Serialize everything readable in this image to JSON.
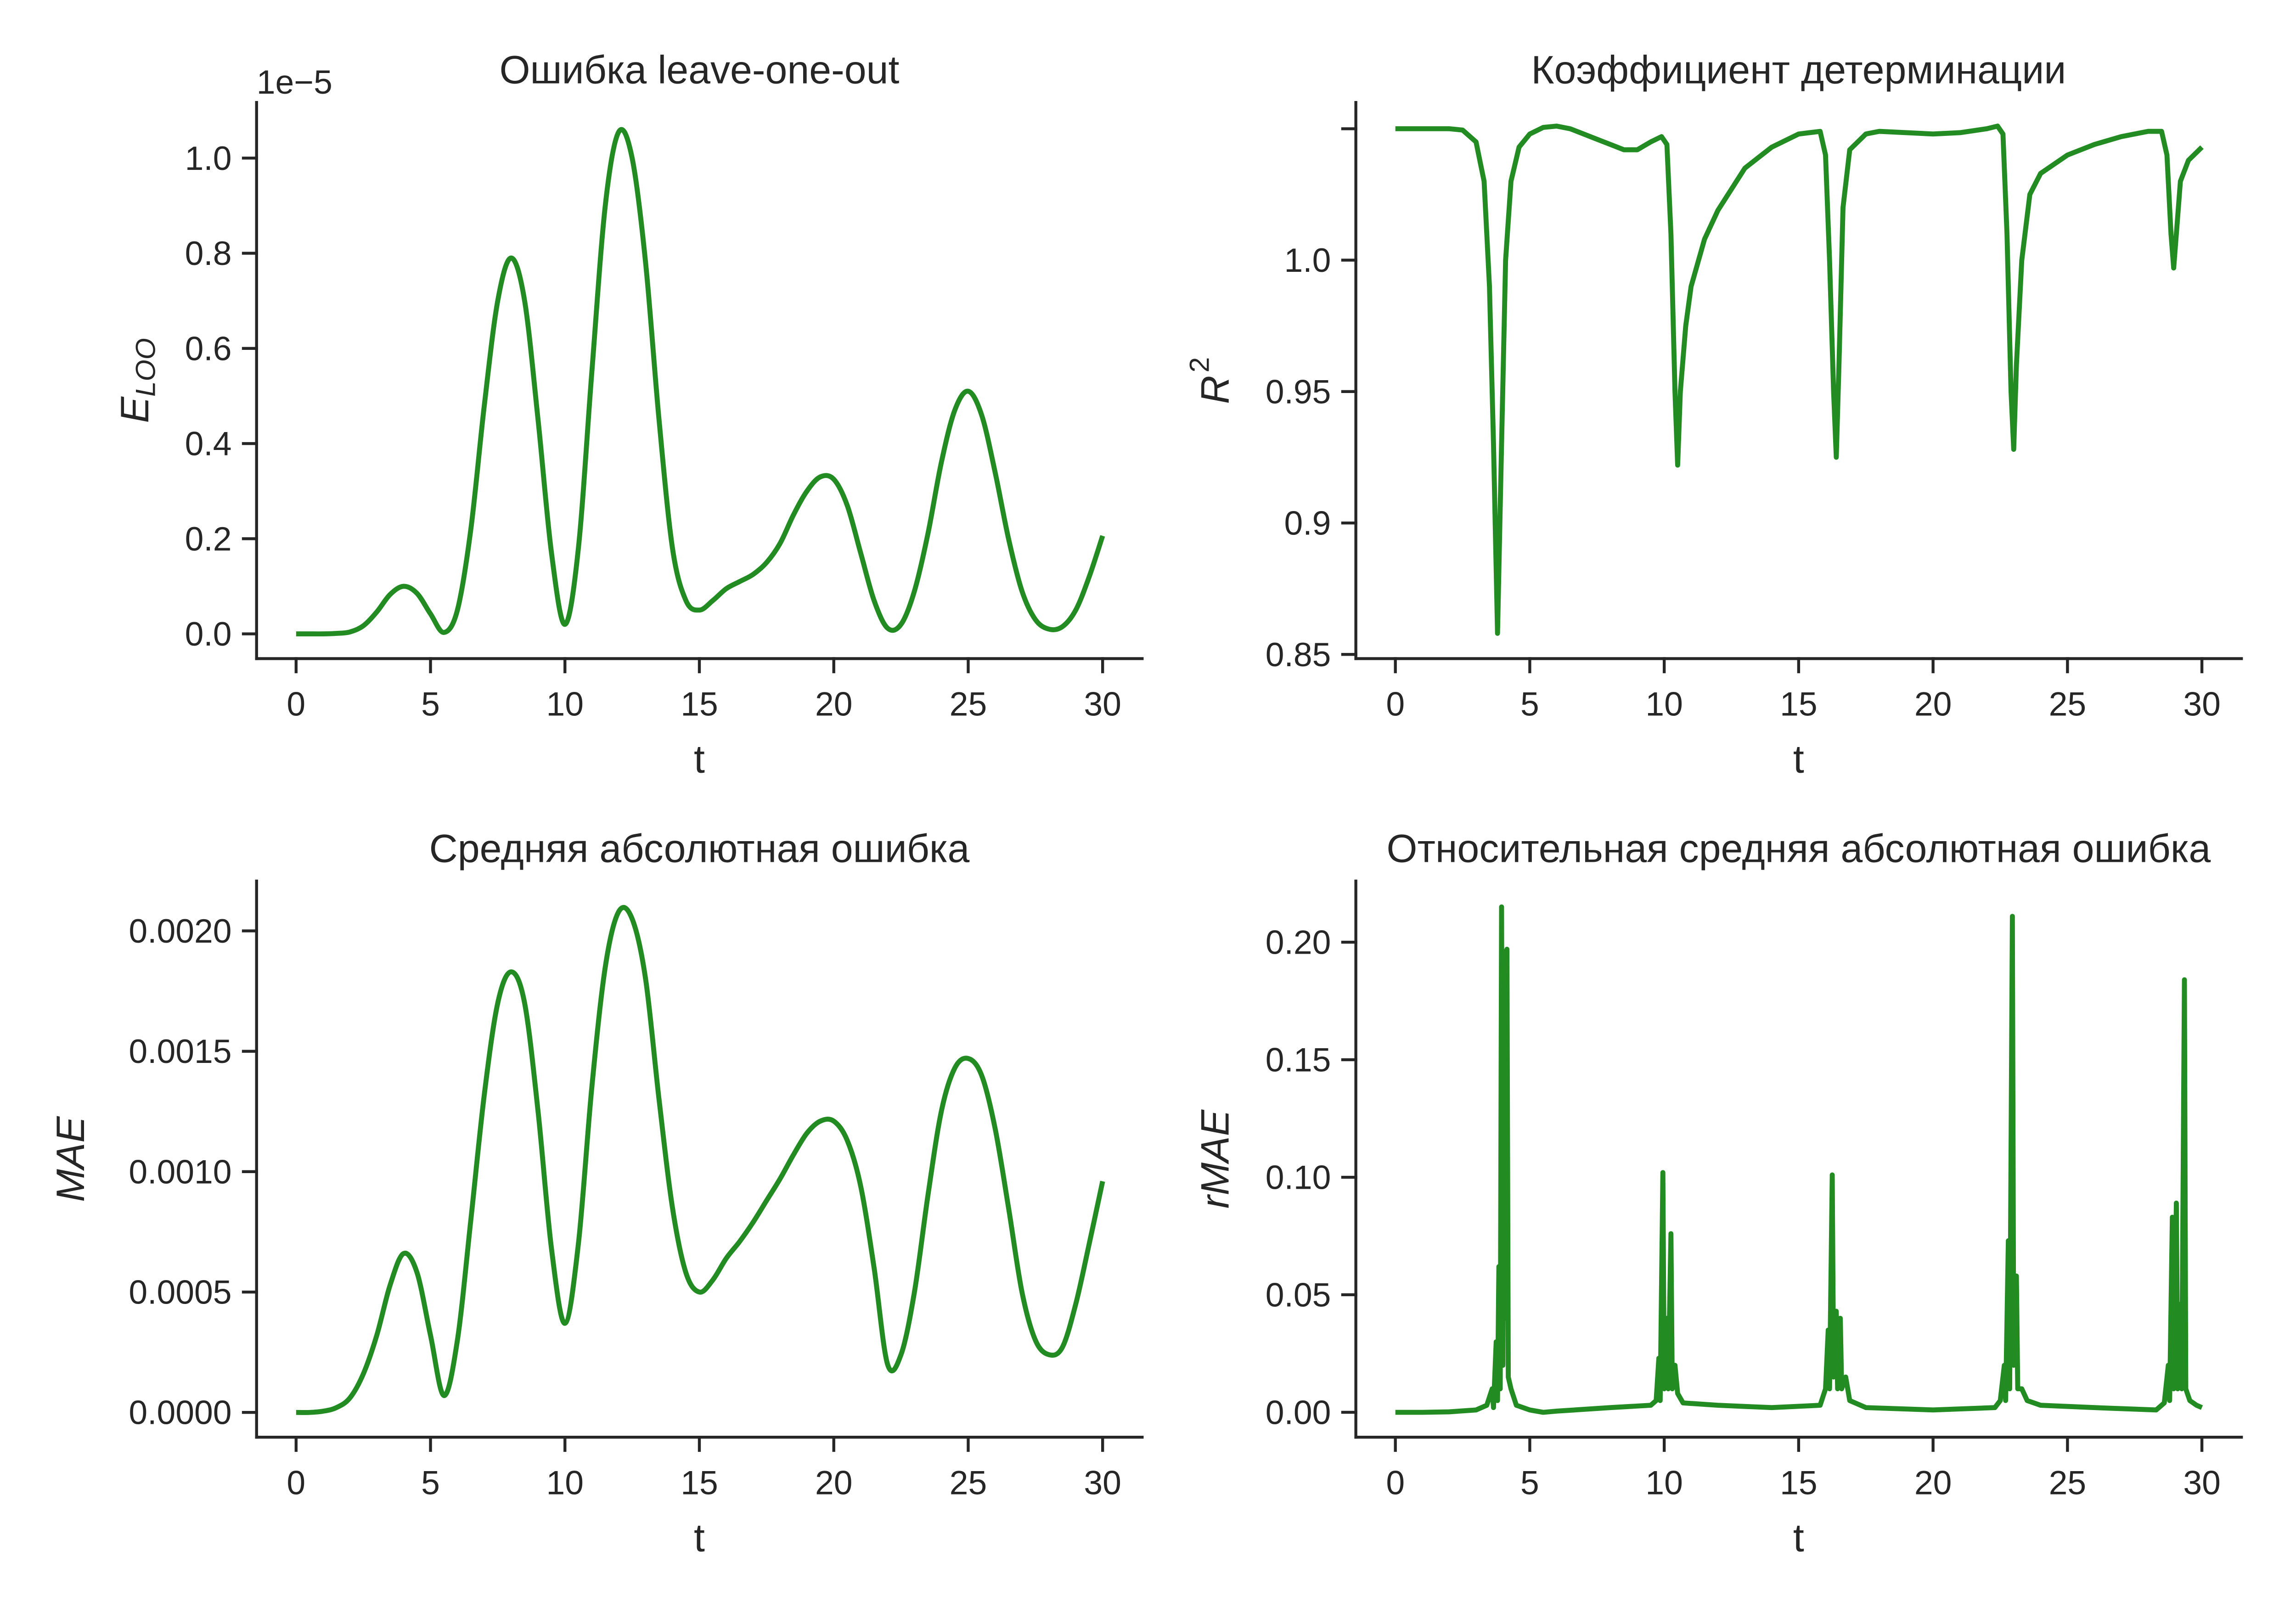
{
  "chart_data": [
    {
      "type": "line",
      "title": "Ошибка leave-one-out",
      "xlabel": "t",
      "ylabel": "E",
      "ylabel_sub": "LOO",
      "y_offset_text": "1e−5",
      "grid": false,
      "line_color": "#228b22",
      "xlim": [
        -1.47,
        31.47
      ],
      "ylim": [
        -0.052,
        1.117
      ],
      "x_ticks": [
        0,
        5,
        10,
        15,
        20,
        25,
        30
      ],
      "x_tick_labels": [
        "0",
        "5",
        "10",
        "15",
        "20",
        "25",
        "30"
      ],
      "y_ticks": [
        0.0,
        0.2,
        0.4,
        0.6,
        0.8,
        1.0
      ],
      "y_tick_labels": [
        "0.0",
        "0.2",
        "0.4",
        "0.6",
        "0.8",
        "1.0"
      ],
      "series": [
        {
          "x": [
            0,
            0.5,
            1,
            1.5,
            2,
            2.5,
            3,
            3.5,
            4,
            4.5,
            5,
            5.5,
            6,
            6.5,
            7,
            7.5,
            8,
            8.5,
            9,
            9.5,
            10,
            10.5,
            11,
            11.5,
            12,
            12.5,
            13,
            13.5,
            14,
            14.5,
            15,
            15.5,
            16,
            16.5,
            17,
            17.5,
            18,
            18.5,
            19,
            19.5,
            20,
            20.5,
            21,
            21.5,
            22,
            22.5,
            23,
            23.5,
            24,
            24.5,
            25,
            25.5,
            26,
            26.5,
            27,
            27.5,
            28,
            28.5,
            29,
            29.5,
            30
          ],
          "y": [
            0,
            0,
            0,
            0.001,
            0.004,
            0.017,
            0.046,
            0.083,
            0.1,
            0.085,
            0.042,
            0.003,
            0.05,
            0.22,
            0.48,
            0.7,
            0.79,
            0.7,
            0.45,
            0.17,
            0.02,
            0.18,
            0.55,
            0.9,
            1.055,
            1.0,
            0.78,
            0.45,
            0.18,
            0.07,
            0.05,
            0.07,
            0.095,
            0.11,
            0.125,
            0.15,
            0.19,
            0.25,
            0.3,
            0.33,
            0.325,
            0.27,
            0.17,
            0.07,
            0.012,
            0.02,
            0.09,
            0.21,
            0.36,
            0.47,
            0.51,
            0.46,
            0.34,
            0.2,
            0.09,
            0.03,
            0.01,
            0.015,
            0.05,
            0.12,
            0.206
          ]
        }
      ]
    },
    {
      "type": "line",
      "title": "Коэффициент детерминации",
      "xlabel": "t",
      "ylabel": "R",
      "ylabel_sup": "2",
      "grid": false,
      "line_color": "#228b22",
      "xlim": [
        -1.47,
        31.47
      ],
      "ylim": [
        0.8484,
        1.06
      ],
      "x_ticks": [
        0,
        5,
        10,
        15,
        20,
        25,
        30
      ],
      "x_tick_labels": [
        "0",
        "5",
        "10",
        "15",
        "20",
        "25",
        "30"
      ],
      "y_ticks": [
        0.85,
        0.9,
        0.95,
        1.0,
        1.05
      ],
      "y_tick_labels": [
        "0.85",
        "0.9",
        "0.95",
        "1.0",
        ""
      ],
      "series": [
        {
          "x": [
            0,
            1,
            2,
            2.5,
            3,
            3.3,
            3.5,
            3.65,
            3.8,
            3.95,
            4.1,
            4.3,
            4.6,
            5,
            5.5,
            6,
            6.5,
            7,
            7.5,
            8,
            8.5,
            9,
            9.5,
            9.9,
            10.1,
            10.25,
            10.4,
            10.5,
            10.6,
            10.8,
            11,
            11.5,
            12,
            13,
            14,
            15,
            15.8,
            16.0,
            16.15,
            16.3,
            16.4,
            16.5,
            16.65,
            16.9,
            17.5,
            18,
            20,
            21,
            22,
            22.4,
            22.6,
            22.75,
            22.9,
            23.0,
            23.1,
            23.3,
            23.6,
            24,
            25,
            26,
            27,
            28,
            28.5,
            28.7,
            28.85,
            28.95,
            29.05,
            29.2,
            29.5,
            30
          ],
          "y": [
            1.05,
            1.05,
            1.05,
            1.0495,
            1.045,
            1.03,
            0.99,
            0.93,
            0.858,
            0.93,
            1.0,
            1.03,
            1.043,
            1.048,
            1.0505,
            1.051,
            1.05,
            1.048,
            1.046,
            1.044,
            1.042,
            1.042,
            1.045,
            1.047,
            1.044,
            1.01,
            0.95,
            0.922,
            0.95,
            0.975,
            0.99,
            1.008,
            1.019,
            1.035,
            1.043,
            1.048,
            1.049,
            1.04,
            1.0,
            0.95,
            0.925,
            0.96,
            1.02,
            1.042,
            1.048,
            1.049,
            1.048,
            1.0485,
            1.05,
            1.051,
            1.048,
            1.01,
            0.95,
            0.928,
            0.96,
            1.0,
            1.025,
            1.033,
            1.04,
            1.044,
            1.047,
            1.049,
            1.049,
            1.04,
            1.01,
            0.997,
            1.01,
            1.03,
            1.038,
            1.043
          ]
        }
      ]
    },
    {
      "type": "line",
      "title": "Средняя абсолютная ошибка",
      "xlabel": "t",
      "ylabel": "MAE",
      "grid": false,
      "line_color": "#228b22",
      "xlim": [
        -1.47,
        31.47
      ],
      "ylim": [
        -0.000103,
        0.002207
      ],
      "x_ticks": [
        0,
        5,
        10,
        15,
        20,
        25,
        30
      ],
      "x_tick_labels": [
        "0",
        "5",
        "10",
        "15",
        "20",
        "25",
        "30"
      ],
      "y_ticks": [
        0.0,
        0.0005,
        0.001,
        0.0015,
        0.002
      ],
      "y_tick_labels": [
        "0.0000",
        "0.0005",
        "0.0010",
        "0.0015",
        "0.0020"
      ],
      "series": [
        {
          "x": [
            0,
            0.5,
            1,
            1.5,
            2,
            2.5,
            3,
            3.5,
            4,
            4.5,
            5,
            5.5,
            6,
            6.5,
            7,
            7.5,
            8,
            8.5,
            9,
            9.5,
            10,
            10.5,
            11,
            11.5,
            12,
            12.5,
            13,
            13.5,
            14,
            14.5,
            15,
            15.5,
            16,
            16.5,
            17,
            17.5,
            18,
            18.5,
            19,
            19.5,
            20,
            20.5,
            21,
            21.5,
            22,
            22.5,
            23,
            23.5,
            24,
            24.5,
            25,
            25.5,
            26,
            26.5,
            27,
            27.5,
            28,
            28.5,
            29,
            29.5,
            30
          ],
          "y": [
            0,
            0,
            5e-06,
            2e-05,
            6e-05,
            0.00016,
            0.00032,
            0.00053,
            0.00066,
            0.00058,
            0.00032,
            7e-05,
            0.0003,
            0.0008,
            0.00132,
            0.0017,
            0.00183,
            0.0017,
            0.00125,
            0.00068,
            0.00037,
            0.0007,
            0.00135,
            0.00185,
            0.00208,
            0.00205,
            0.0018,
            0.0013,
            0.00085,
            0.00058,
            0.0005,
            0.00055,
            0.00064,
            0.00071,
            0.00079,
            0.00088,
            0.00097,
            0.00107,
            0.00116,
            0.00121,
            0.00121,
            0.00113,
            0.00094,
            0.0006,
            0.0002,
            0.00024,
            0.0005,
            0.0009,
            0.00125,
            0.00143,
            0.00147,
            0.0014,
            0.00118,
            0.00085,
            0.0005,
            0.0003,
            0.00024,
            0.00027,
            0.00045,
            0.0007,
            0.00096
          ]
        }
      ]
    },
    {
      "type": "line",
      "title": "Относительная средняя абсолютная ошибка",
      "xlabel": "t",
      "ylabel": "rMAE",
      "grid": false,
      "line_color": "#228b22",
      "xlim": [
        -1.47,
        31.47
      ],
      "ylim": [
        -0.0106,
        0.226
      ],
      "x_ticks": [
        0,
        5,
        10,
        15,
        20,
        25,
        30
      ],
      "x_tick_labels": [
        "0",
        "5",
        "10",
        "15",
        "20",
        "25",
        "30"
      ],
      "y_ticks": [
        0.0,
        0.05,
        0.1,
        0.15,
        0.2
      ],
      "y_tick_labels": [
        "0.00",
        "0.05",
        "0.10",
        "0.15",
        "0.20"
      ],
      "series": [
        {
          "x": [
            0,
            1,
            2,
            3,
            3.4,
            3.6,
            3.65,
            3.75,
            3.8,
            3.85,
            3.9,
            3.95,
            4.0,
            4.05,
            4.1,
            4.15,
            4.2,
            4.3,
            4.5,
            5,
            5.5,
            6,
            8,
            9.5,
            9.7,
            9.8,
            9.85,
            9.95,
            10.0,
            10.1,
            10.15,
            10.25,
            10.3,
            10.4,
            10.5,
            10.7,
            12,
            14,
            15.8,
            16.0,
            16.1,
            16.15,
            16.25,
            16.3,
            16.4,
            16.45,
            16.55,
            16.6,
            16.75,
            16.9,
            17.5,
            20,
            22.3,
            22.5,
            22.65,
            22.7,
            22.8,
            22.85,
            22.95,
            23.0,
            23.1,
            23.15,
            23.3,
            23.5,
            24,
            26,
            28.3,
            28.6,
            28.75,
            28.8,
            28.9,
            28.95,
            29.05,
            29.1,
            29.2,
            29.25,
            29.35,
            29.4,
            29.55,
            29.8,
            30
          ],
          "y": [
            0,
            0,
            0.0002,
            0.001,
            0.003,
            0.01,
            0.002,
            0.03,
            0.005,
            0.062,
            0.01,
            0.215,
            0.02,
            0.196,
            0.04,
            0.197,
            0.015,
            0.01,
            0.003,
            0.001,
            0.0,
            0.0005,
            0.002,
            0.003,
            0.005,
            0.023,
            0.005,
            0.102,
            0.01,
            0.04,
            0.01,
            0.076,
            0.01,
            0.02,
            0.008,
            0.004,
            0.003,
            0.002,
            0.003,
            0.01,
            0.035,
            0.01,
            0.101,
            0.015,
            0.043,
            0.01,
            0.04,
            0.01,
            0.015,
            0.005,
            0.002,
            0.001,
            0.002,
            0.005,
            0.02,
            0.005,
            0.073,
            0.01,
            0.211,
            0.02,
            0.058,
            0.01,
            0.01,
            0.005,
            0.003,
            0.002,
            0.001,
            0.004,
            0.02,
            0.005,
            0.083,
            0.01,
            0.089,
            0.01,
            0.046,
            0.01,
            0.184,
            0.01,
            0.005,
            0.003,
            0.002
          ]
        }
      ]
    }
  ]
}
